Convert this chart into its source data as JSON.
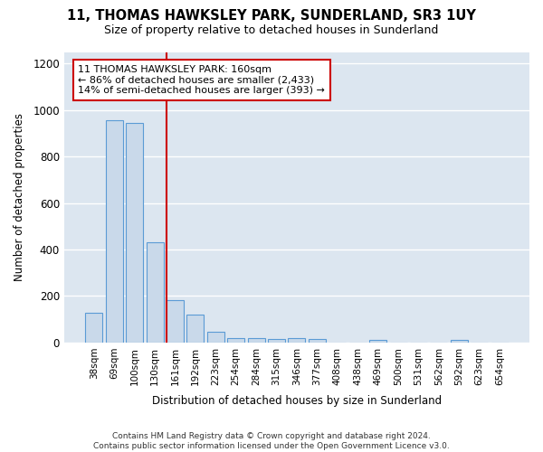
{
  "title_line1": "11, THOMAS HAWKSLEY PARK, SUNDERLAND, SR3 1UY",
  "title_line2": "Size of property relative to detached houses in Sunderland",
  "xlabel": "Distribution of detached houses by size in Sunderland",
  "ylabel": "Number of detached properties",
  "footer_line1": "Contains HM Land Registry data © Crown copyright and database right 2024.",
  "footer_line2": "Contains public sector information licensed under the Open Government Licence v3.0.",
  "categories": [
    "38sqm",
    "69sqm",
    "100sqm",
    "130sqm",
    "161sqm",
    "192sqm",
    "223sqm",
    "254sqm",
    "284sqm",
    "315sqm",
    "346sqm",
    "377sqm",
    "408sqm",
    "438sqm",
    "469sqm",
    "500sqm",
    "531sqm",
    "562sqm",
    "592sqm",
    "623sqm",
    "654sqm"
  ],
  "values": [
    127,
    955,
    945,
    430,
    183,
    120,
    47,
    20,
    20,
    15,
    20,
    15,
    0,
    0,
    12,
    0,
    0,
    0,
    12,
    0,
    0
  ],
  "bar_color": "#c9d9ea",
  "bar_edge_color": "#5b9bd5",
  "highlight_index": 4,
  "highlight_line_color": "#cc0000",
  "annotation_text_line1": "11 THOMAS HAWKSLEY PARK: 160sqm",
  "annotation_text_line2": "← 86% of detached houses are smaller (2,433)",
  "annotation_text_line3": "14% of semi-detached houses are larger (393) →",
  "annotation_box_color": "white",
  "annotation_box_edge_color": "#cc0000",
  "ylim": [
    0,
    1250
  ],
  "yticks": [
    0,
    200,
    400,
    600,
    800,
    1000,
    1200
  ],
  "plot_bg_color": "#dce6f0",
  "fig_bg_color": "#ffffff",
  "grid_color": "#ffffff"
}
